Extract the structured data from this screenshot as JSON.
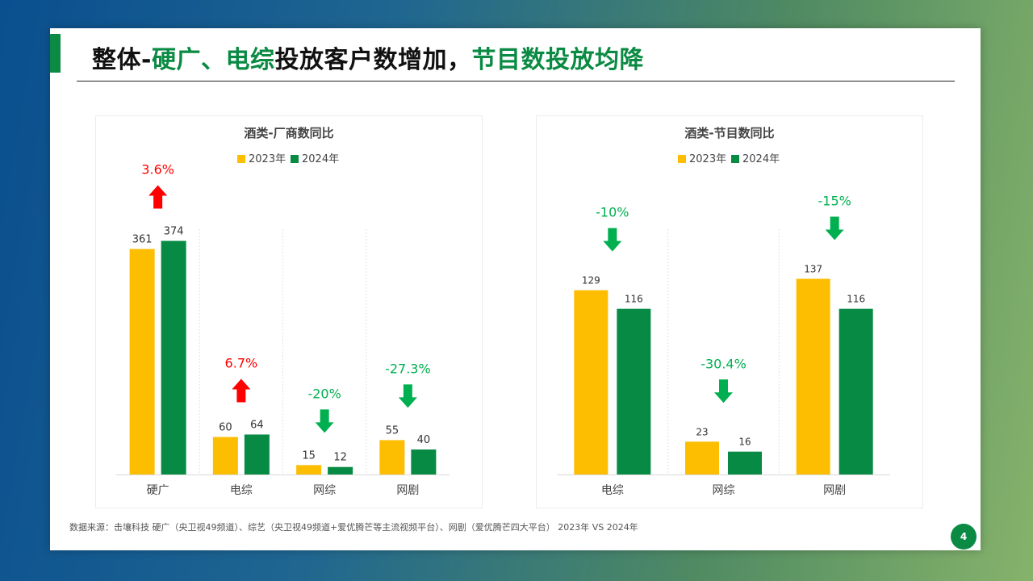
{
  "title": {
    "part1": "整体-",
    "part2": "硬广、电综",
    "part3": "投放客户数增加，",
    "part4": "节目数投放均降"
  },
  "source": "数据来源：击壤科技  硬广（央卫视49频道）、综艺（央卫视49频道+爱优腾芒等主流视频平台）、网剧（爱优腾芒四大平台） 2023年 VS 2024年",
  "page_number": "4",
  "colors": {
    "series_2023": "#fdbd00",
    "series_2024": "#078a43",
    "up": "#ff0000",
    "down": "#00b050",
    "accent": "#0a8a43"
  },
  "chart_data": [
    {
      "type": "bar",
      "title": "酒类-厂商数同比",
      "legend_position": "top",
      "categories": [
        "硬广",
        "电综",
        "网综",
        "网剧"
      ],
      "series": [
        {
          "name": "2023年",
          "values": [
            361,
            60,
            15,
            55
          ]
        },
        {
          "name": "2024年",
          "values": [
            374,
            64,
            12,
            40
          ]
        }
      ],
      "annotations": [
        {
          "text": "3.6%",
          "direction": "up"
        },
        {
          "text": "6.7%",
          "direction": "up"
        },
        {
          "text": "-20%",
          "direction": "down"
        },
        {
          "text": "-27.3%",
          "direction": "down"
        }
      ]
    },
    {
      "type": "bar",
      "title": "酒类-节目数同比",
      "legend_position": "top",
      "categories": [
        "电综",
        "网综",
        "网剧"
      ],
      "series": [
        {
          "name": "2023年",
          "values": [
            129,
            23,
            137
          ]
        },
        {
          "name": "2024年",
          "values": [
            116,
            16,
            116
          ]
        }
      ],
      "annotations": [
        {
          "text": "-10%",
          "direction": "down"
        },
        {
          "text": "-30.4%",
          "direction": "down"
        },
        {
          "text": "-15%",
          "direction": "down"
        }
      ]
    }
  ]
}
